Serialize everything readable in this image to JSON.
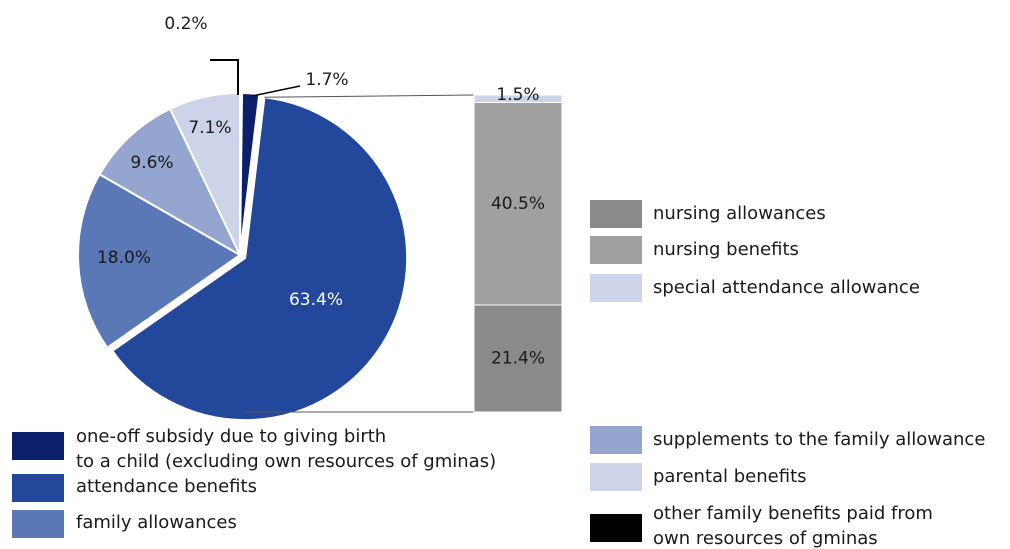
{
  "chart_data": {
    "type": "pie_of_bar",
    "pie": {
      "categories": [
        [
          "other family benefits paid from",
          "own resources of gminas"
        ],
        [
          "one-off subsidy due to giving birth",
          "to a child (excluding own resources of gminas)"
        ],
        [
          "attendance benefits"
        ],
        [
          "family allowances"
        ],
        [
          "supplements to the family allowance"
        ],
        [
          "parental benefits"
        ]
      ],
      "values": [
        0.2,
        1.7,
        63.4,
        18.0,
        9.6,
        7.1
      ],
      "value_labels": [
        "0.2%",
        "1.7%",
        "63.4%",
        "18.0%",
        "9.6%",
        "7.1%"
      ],
      "colors": [
        "#000000",
        "#0b1f6b",
        "#23479a",
        "#5a78b5",
        "#94a6d0",
        "#cdd3e8"
      ]
    },
    "bar": {
      "categories": [
        [
          "nursing allowances"
        ],
        [
          "nursing benefits"
        ],
        [
          "special attendance allowance"
        ]
      ],
      "values": [
        21.4,
        40.5,
        1.5
      ],
      "value_labels": [
        "21.4%",
        "40.5%",
        "1.5%"
      ],
      "colors": [
        "#8a8a8a",
        "#9fa09f",
        "#cdd3e8"
      ]
    }
  }
}
